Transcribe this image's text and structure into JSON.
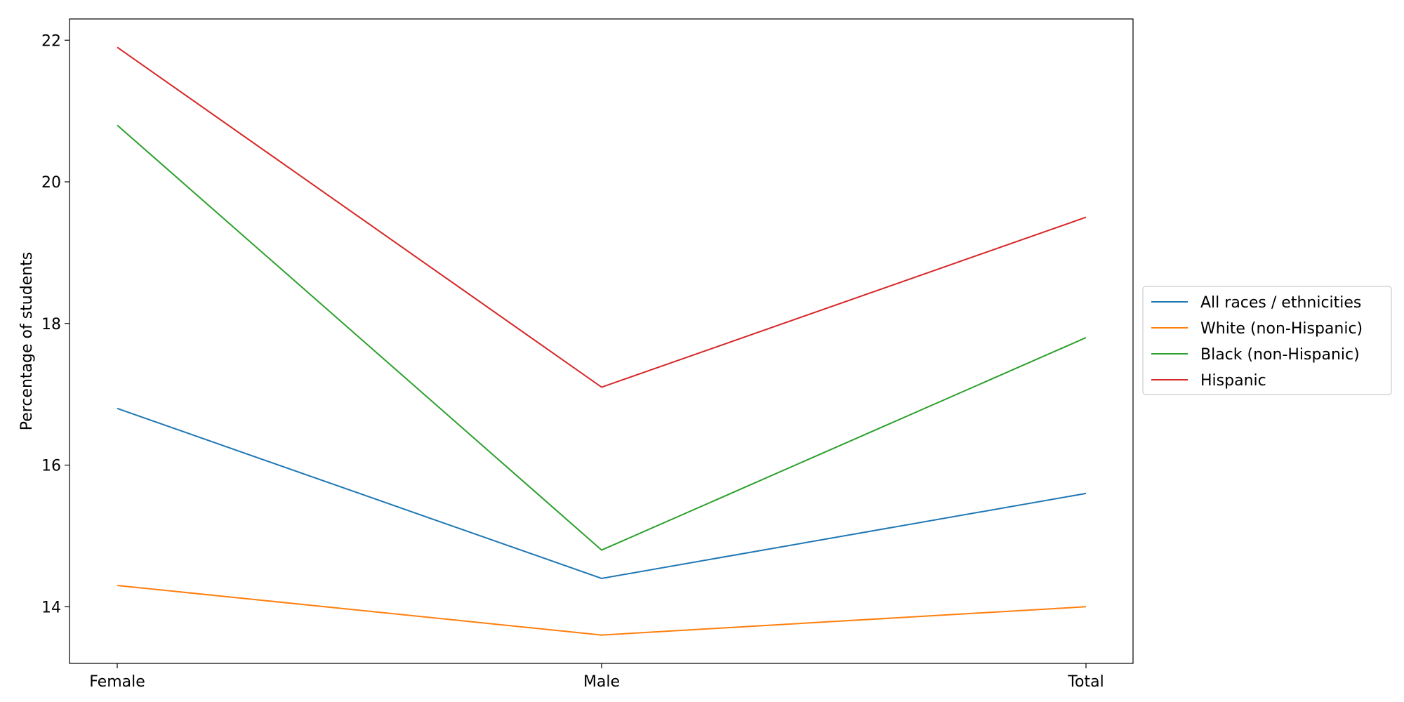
{
  "chart_data": {
    "type": "line",
    "categories": [
      "Female",
      "Male",
      "Total"
    ],
    "series": [
      {
        "name": "All races / ethnicities",
        "values": [
          16.8,
          14.4,
          15.6
        ],
        "color": "#1f77b4"
      },
      {
        "name": "White (non-Hispanic)",
        "values": [
          14.3,
          13.6,
          14.0
        ],
        "color": "#ff7f0e"
      },
      {
        "name": "Black (non-Hispanic)",
        "values": [
          20.8,
          14.8,
          17.8
        ],
        "color": "#2ca02c"
      },
      {
        "name": "Hispanic",
        "values": [
          21.9,
          17.1,
          19.5
        ],
        "color": "#d62728"
      }
    ],
    "title": "",
    "xlabel": "",
    "ylabel": "Percentage of students",
    "ylim": [
      13.2,
      22.3
    ],
    "yticks": [
      14,
      16,
      18,
      20,
      22
    ],
    "grid": false,
    "legend_position": "right"
  }
}
